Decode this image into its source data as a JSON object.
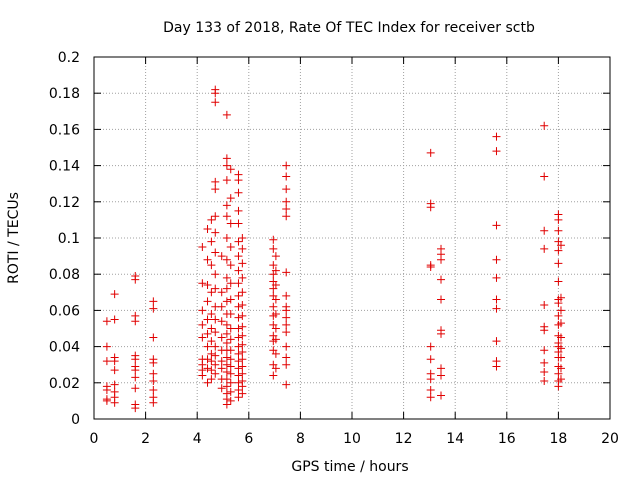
{
  "colors": {
    "series": "#e00000",
    "grid": "#a0a0a0",
    "axis": "#000000",
    "background": "#ffffff"
  },
  "chart_data": {
    "type": "scatter",
    "marker": "plus",
    "title": "Day 133 of 2018, Rate Of TEC Index for receiver sctb",
    "xlabel": "GPS time / hours",
    "ylabel": "ROTI / TECUs",
    "xlim": [
      0,
      20
    ],
    "ylim": [
      0,
      0.2
    ],
    "grid": true,
    "x_ticks": [
      0,
      2,
      4,
      6,
      8,
      10,
      12,
      14,
      16,
      18,
      20
    ],
    "y_ticks": [
      0,
      0.02,
      0.04,
      0.06,
      0.08,
      0.1,
      0.12,
      0.14,
      0.16,
      0.18,
      0.2
    ],
    "x_tick_labels": [
      "0",
      "2",
      "4",
      "6",
      "8",
      "10",
      "12",
      "14",
      "16",
      "18",
      "20"
    ],
    "y_tick_labels": [
      "0",
      "0.02",
      "0.04",
      "0.06",
      "0.08",
      "0.1",
      "0.12",
      "0.14",
      "0.16",
      "0.18",
      "0.2"
    ],
    "series": [
      {
        "name": "sctb",
        "points": [
          [
            0.5,
            0.054
          ],
          [
            0.5,
            0.04
          ],
          [
            0.5,
            0.032
          ],
          [
            0.5,
            0.018
          ],
          [
            0.5,
            0.016
          ],
          [
            0.5,
            0.011
          ],
          [
            0.5,
            0.01
          ],
          [
            0.8,
            0.069
          ],
          [
            0.8,
            0.055
          ],
          [
            0.8,
            0.034
          ],
          [
            0.8,
            0.032
          ],
          [
            0.8,
            0.027
          ],
          [
            0.8,
            0.019
          ],
          [
            0.8,
            0.015
          ],
          [
            0.8,
            0.012
          ],
          [
            0.8,
            0.009
          ],
          [
            1.6,
            0.079
          ],
          [
            1.6,
            0.077
          ],
          [
            1.6,
            0.057
          ],
          [
            1.6,
            0.054
          ],
          [
            1.6,
            0.035
          ],
          [
            1.6,
            0.033
          ],
          [
            1.6,
            0.029
          ],
          [
            1.6,
            0.027
          ],
          [
            1.6,
            0.023
          ],
          [
            1.6,
            0.017
          ],
          [
            1.6,
            0.008
          ],
          [
            1.6,
            0.006
          ],
          [
            2.3,
            0.065
          ],
          [
            2.3,
            0.061
          ],
          [
            2.3,
            0.045
          ],
          [
            2.3,
            0.033
          ],
          [
            2.3,
            0.031
          ],
          [
            2.3,
            0.025
          ],
          [
            2.3,
            0.021
          ],
          [
            2.3,
            0.016
          ],
          [
            2.3,
            0.012
          ],
          [
            2.3,
            0.009
          ],
          [
            4.2,
            0.095
          ],
          [
            4.2,
            0.075
          ],
          [
            4.2,
            0.06
          ],
          [
            4.2,
            0.052
          ],
          [
            4.2,
            0.045
          ],
          [
            4.2,
            0.033
          ],
          [
            4.2,
            0.03
          ],
          [
            4.2,
            0.027
          ],
          [
            4.2,
            0.024
          ],
          [
            4.4,
            0.105
          ],
          [
            4.4,
            0.088
          ],
          [
            4.4,
            0.074
          ],
          [
            4.4,
            0.065
          ],
          [
            4.4,
            0.055
          ],
          [
            4.4,
            0.047
          ],
          [
            4.4,
            0.04
          ],
          [
            4.4,
            0.033
          ],
          [
            4.4,
            0.028
          ],
          [
            4.4,
            0.02
          ],
          [
            4.55,
            0.11
          ],
          [
            4.55,
            0.098
          ],
          [
            4.55,
            0.085
          ],
          [
            4.55,
            0.07
          ],
          [
            4.55,
            0.058
          ],
          [
            4.55,
            0.05
          ],
          [
            4.55,
            0.043
          ],
          [
            4.55,
            0.036
          ],
          [
            4.55,
            0.032
          ],
          [
            4.55,
            0.027
          ],
          [
            4.55,
            0.022
          ],
          [
            4.7,
            0.182
          ],
          [
            4.7,
            0.18
          ],
          [
            4.7,
            0.175
          ],
          [
            4.7,
            0.131
          ],
          [
            4.7,
            0.127
          ],
          [
            4.7,
            0.112
          ],
          [
            4.7,
            0.103
          ],
          [
            4.7,
            0.092
          ],
          [
            4.7,
            0.08
          ],
          [
            4.7,
            0.072
          ],
          [
            4.7,
            0.062
          ],
          [
            4.7,
            0.055
          ],
          [
            4.7,
            0.048
          ],
          [
            4.7,
            0.04
          ],
          [
            4.7,
            0.035
          ],
          [
            4.7,
            0.03
          ],
          [
            4.7,
            0.025
          ],
          [
            4.95,
            0.09
          ],
          [
            4.95,
            0.07
          ],
          [
            4.95,
            0.062
          ],
          [
            4.95,
            0.054
          ],
          [
            4.95,
            0.045
          ],
          [
            4.95,
            0.038
          ],
          [
            4.95,
            0.032
          ],
          [
            4.95,
            0.028
          ],
          [
            4.95,
            0.022
          ],
          [
            4.95,
            0.017
          ],
          [
            5.15,
            0.168
          ],
          [
            5.15,
            0.144
          ],
          [
            5.15,
            0.14
          ],
          [
            5.15,
            0.132
          ],
          [
            5.15,
            0.118
          ],
          [
            5.15,
            0.112
          ],
          [
            5.15,
            0.1
          ],
          [
            5.15,
            0.088
          ],
          [
            5.15,
            0.078
          ],
          [
            5.15,
            0.072
          ],
          [
            5.15,
            0.065
          ],
          [
            5.15,
            0.058
          ],
          [
            5.15,
            0.052
          ],
          [
            5.15,
            0.047
          ],
          [
            5.15,
            0.042
          ],
          [
            5.15,
            0.038
          ],
          [
            5.15,
            0.034
          ],
          [
            5.15,
            0.03
          ],
          [
            5.15,
            0.026
          ],
          [
            5.15,
            0.022
          ],
          [
            5.15,
            0.018
          ],
          [
            5.15,
            0.014
          ],
          [
            5.15,
            0.011
          ],
          [
            5.15,
            0.008
          ],
          [
            5.3,
            0.138
          ],
          [
            5.3,
            0.122
          ],
          [
            5.3,
            0.108
          ],
          [
            5.3,
            0.095
          ],
          [
            5.3,
            0.085
          ],
          [
            5.3,
            0.075
          ],
          [
            5.3,
            0.066
          ],
          [
            5.3,
            0.058
          ],
          [
            5.3,
            0.05
          ],
          [
            5.3,
            0.044
          ],
          [
            5.3,
            0.038
          ],
          [
            5.3,
            0.033
          ],
          [
            5.3,
            0.029
          ],
          [
            5.3,
            0.025
          ],
          [
            5.3,
            0.02
          ],
          [
            5.3,
            0.015
          ],
          [
            5.3,
            0.01
          ],
          [
            5.6,
            0.135
          ],
          [
            5.6,
            0.132
          ],
          [
            5.6,
            0.125
          ],
          [
            5.6,
            0.115
          ],
          [
            5.6,
            0.108
          ],
          [
            5.6,
            0.098
          ],
          [
            5.6,
            0.09
          ],
          [
            5.6,
            0.082
          ],
          [
            5.6,
            0.075
          ],
          [
            5.6,
            0.068
          ],
          [
            5.6,
            0.062
          ],
          [
            5.6,
            0.056
          ],
          [
            5.6,
            0.05
          ],
          [
            5.6,
            0.045
          ],
          [
            5.6,
            0.04
          ],
          [
            5.6,
            0.036
          ],
          [
            5.6,
            0.032
          ],
          [
            5.6,
            0.028
          ],
          [
            5.6,
            0.024
          ],
          [
            5.6,
            0.02
          ],
          [
            5.6,
            0.016
          ],
          [
            5.6,
            0.012
          ],
          [
            5.75,
            0.1
          ],
          [
            5.75,
            0.094
          ],
          [
            5.75,
            0.086
          ],
          [
            5.75,
            0.078
          ],
          [
            5.75,
            0.07
          ],
          [
            5.75,
            0.063
          ],
          [
            5.75,
            0.057
          ],
          [
            5.75,
            0.051
          ],
          [
            5.75,
            0.046
          ],
          [
            5.75,
            0.041
          ],
          [
            5.75,
            0.037
          ],
          [
            5.75,
            0.033
          ],
          [
            5.75,
            0.029
          ],
          [
            5.75,
            0.025
          ],
          [
            5.75,
            0.021
          ],
          [
            5.75,
            0.018
          ],
          [
            5.75,
            0.014
          ],
          [
            6.95,
            0.099
          ],
          [
            6.95,
            0.094
          ],
          [
            6.95,
            0.085
          ],
          [
            6.95,
            0.08
          ],
          [
            6.95,
            0.076
          ],
          [
            6.95,
            0.072
          ],
          [
            6.95,
            0.068
          ],
          [
            6.95,
            0.062
          ],
          [
            6.95,
            0.057
          ],
          [
            6.95,
            0.052
          ],
          [
            6.95,
            0.046
          ],
          [
            6.95,
            0.043
          ],
          [
            6.95,
            0.038
          ],
          [
            6.95,
            0.03
          ],
          [
            6.95,
            0.024
          ],
          [
            7.05,
            0.09
          ],
          [
            7.05,
            0.082
          ],
          [
            7.05,
            0.074
          ],
          [
            7.05,
            0.066
          ],
          [
            7.05,
            0.058
          ],
          [
            7.05,
            0.05
          ],
          [
            7.05,
            0.044
          ],
          [
            7.05,
            0.036
          ],
          [
            7.05,
            0.028
          ],
          [
            7.45,
            0.14
          ],
          [
            7.45,
            0.134
          ],
          [
            7.45,
            0.127
          ],
          [
            7.45,
            0.12
          ],
          [
            7.45,
            0.116
          ],
          [
            7.45,
            0.112
          ],
          [
            7.45,
            0.081
          ],
          [
            7.45,
            0.068
          ],
          [
            7.45,
            0.062
          ],
          [
            7.45,
            0.06
          ],
          [
            7.45,
            0.056
          ],
          [
            7.45,
            0.052
          ],
          [
            7.45,
            0.048
          ],
          [
            7.45,
            0.04
          ],
          [
            7.45,
            0.034
          ],
          [
            7.45,
            0.03
          ],
          [
            7.45,
            0.019
          ],
          [
            13.05,
            0.147
          ],
          [
            13.05,
            0.119
          ],
          [
            13.05,
            0.117
          ],
          [
            13.05,
            0.085
          ],
          [
            13.05,
            0.084
          ],
          [
            13.05,
            0.04
          ],
          [
            13.05,
            0.033
          ],
          [
            13.05,
            0.025
          ],
          [
            13.05,
            0.022
          ],
          [
            13.05,
            0.016
          ],
          [
            13.05,
            0.012
          ],
          [
            13.45,
            0.094
          ],
          [
            13.45,
            0.091
          ],
          [
            13.45,
            0.088
          ],
          [
            13.45,
            0.077
          ],
          [
            13.45,
            0.066
          ],
          [
            13.45,
            0.049
          ],
          [
            13.45,
            0.047
          ],
          [
            13.45,
            0.028
          ],
          [
            13.45,
            0.024
          ],
          [
            13.45,
            0.013
          ],
          [
            15.6,
            0.156
          ],
          [
            15.6,
            0.148
          ],
          [
            15.6,
            0.107
          ],
          [
            15.6,
            0.088
          ],
          [
            15.6,
            0.078
          ],
          [
            15.6,
            0.066
          ],
          [
            15.6,
            0.061
          ],
          [
            15.6,
            0.043
          ],
          [
            15.6,
            0.032
          ],
          [
            15.6,
            0.029
          ],
          [
            17.45,
            0.162
          ],
          [
            17.45,
            0.134
          ],
          [
            17.45,
            0.104
          ],
          [
            17.45,
            0.094
          ],
          [
            17.45,
            0.063
          ],
          [
            17.45,
            0.051
          ],
          [
            17.45,
            0.049
          ],
          [
            17.45,
            0.038
          ],
          [
            17.45,
            0.031
          ],
          [
            17.45,
            0.026
          ],
          [
            17.45,
            0.021
          ],
          [
            18.0,
            0.113
          ],
          [
            18.0,
            0.11
          ],
          [
            18.0,
            0.104
          ],
          [
            18.0,
            0.098
          ],
          [
            18.0,
            0.093
          ],
          [
            18.0,
            0.086
          ],
          [
            18.0,
            0.076
          ],
          [
            18.0,
            0.066
          ],
          [
            18.0,
            0.064
          ],
          [
            18.0,
            0.057
          ],
          [
            18.0,
            0.052
          ],
          [
            18.0,
            0.046
          ],
          [
            18.0,
            0.042
          ],
          [
            18.0,
            0.04
          ],
          [
            18.0,
            0.037
          ],
          [
            18.0,
            0.034
          ],
          [
            18.0,
            0.029
          ],
          [
            18.0,
            0.025
          ],
          [
            18.0,
            0.021
          ],
          [
            18.0,
            0.018
          ],
          [
            18.1,
            0.096
          ],
          [
            18.1,
            0.067
          ],
          [
            18.1,
            0.06
          ],
          [
            18.1,
            0.053
          ],
          [
            18.1,
            0.045
          ],
          [
            18.1,
            0.039
          ],
          [
            18.1,
            0.034
          ],
          [
            18.1,
            0.028
          ],
          [
            18.1,
            0.022
          ]
        ]
      }
    ]
  }
}
